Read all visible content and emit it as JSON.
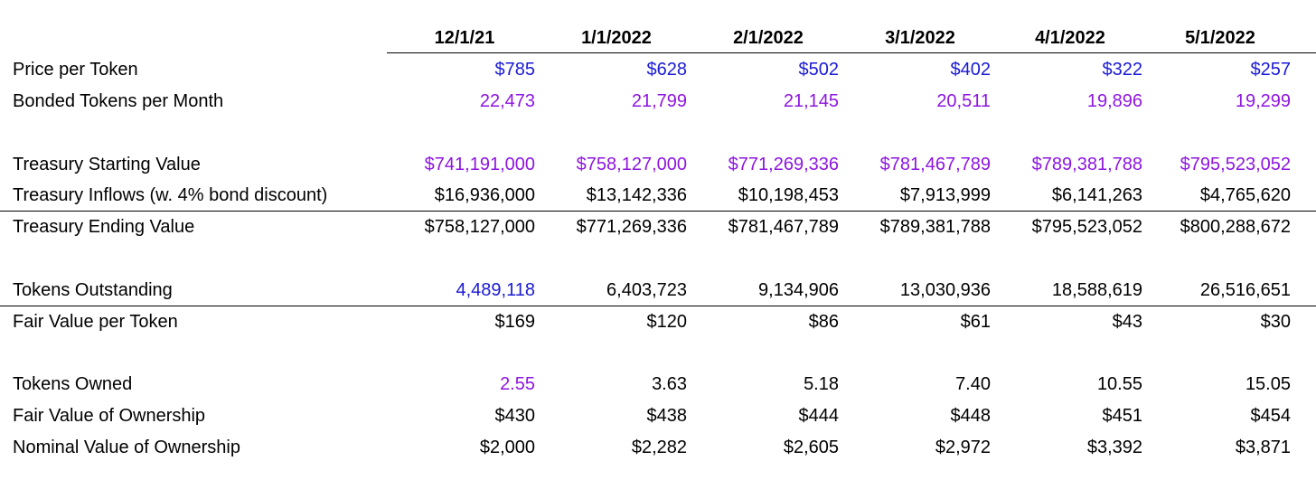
{
  "colors": {
    "blue": "#1a1ad6",
    "purple": "#8e15e0",
    "black": "#000000"
  },
  "header": {
    "dates": [
      "12/1/21",
      "1/1/2022",
      "2/1/2022",
      "3/1/2022",
      "4/1/2022",
      "5/1/2022"
    ]
  },
  "rows": {
    "price_per_token": {
      "label": "Price per Token",
      "values": [
        "$785",
        "$628",
        "$502",
        "$402",
        "$322",
        "$257"
      ]
    },
    "bonded_tokens": {
      "label": "Bonded Tokens per Month",
      "values": [
        "22,473",
        "21,799",
        "21,145",
        "20,511",
        "19,896",
        "19,299"
      ]
    },
    "treasury_start": {
      "label": "Treasury Starting Value",
      "values": [
        "$741,191,000",
        "$758,127,000",
        "$771,269,336",
        "$781,467,789",
        "$789,381,788",
        "$795,523,052"
      ]
    },
    "treasury_inflows": {
      "label": "Treasury Inflows (w. 4% bond discount)",
      "values": [
        "$16,936,000",
        "$13,142,336",
        "$10,198,453",
        "$7,913,999",
        "$6,141,263",
        "$4,765,620"
      ]
    },
    "treasury_end": {
      "label": "Treasury Ending Value",
      "values": [
        "$758,127,000",
        "$771,269,336",
        "$781,467,789",
        "$789,381,788",
        "$795,523,052",
        "$800,288,672"
      ]
    },
    "tokens_outstanding": {
      "label": "Tokens Outstanding",
      "values": [
        "4,489,118",
        "6,403,723",
        "9,134,906",
        "13,030,936",
        "18,588,619",
        "26,516,651"
      ]
    },
    "fair_value_token": {
      "label": "Fair Value per Token",
      "values": [
        "$169",
        "$120",
        "$86",
        "$61",
        "$43",
        "$30"
      ]
    },
    "tokens_owned": {
      "label": "Tokens Owned",
      "values": [
        "2.55",
        "3.63",
        "5.18",
        "7.40",
        "10.55",
        "15.05"
      ]
    },
    "fair_value_ownership": {
      "label": "Fair Value of Ownership",
      "values": [
        "$430",
        "$438",
        "$444",
        "$448",
        "$451",
        "$454"
      ]
    },
    "nominal_value_ownership": {
      "label": "Nominal Value of Ownership",
      "values": [
        "$2,000",
        "$2,282",
        "$2,605",
        "$2,972",
        "$3,392",
        "$3,871"
      ]
    }
  }
}
